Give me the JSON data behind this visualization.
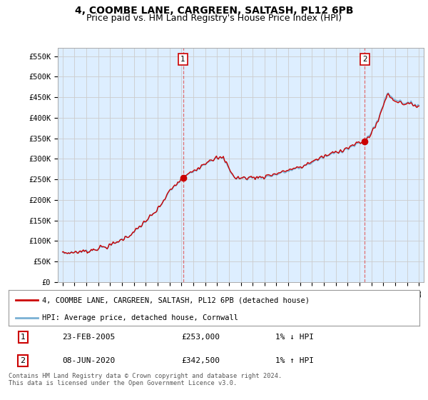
{
  "title": "4, COOMBE LANE, CARGREEN, SALTASH, PL12 6PB",
  "subtitle": "Price paid vs. HM Land Registry's House Price Index (HPI)",
  "title_fontsize": 10,
  "subtitle_fontsize": 9,
  "ylim": [
    0,
    570000
  ],
  "yticks": [
    0,
    50000,
    100000,
    150000,
    200000,
    250000,
    300000,
    350000,
    400000,
    450000,
    500000,
    550000
  ],
  "ytick_labels": [
    "£0",
    "£50K",
    "£100K",
    "£150K",
    "£200K",
    "£250K",
    "£300K",
    "£350K",
    "£400K",
    "£450K",
    "£500K",
    "£550K"
  ],
  "sale1_year": 2005.14,
  "sale1_price": 253000,
  "sale1_label": "1",
  "sale1_date": "23-FEB-2005",
  "sale1_amount": "£253,000",
  "sale1_hpi": "1% ↓ HPI",
  "sale2_year": 2020.44,
  "sale2_price": 342500,
  "sale2_label": "2",
  "sale2_date": "08-JUN-2020",
  "sale2_amount": "£342,500",
  "sale2_hpi": "1% ↑ HPI",
  "hpi_color": "#7ab0d4",
  "sale_color": "#cc0000",
  "vline_color": "#e06060",
  "plot_bg_color": "#ddeeff",
  "legend_label1": "4, COOMBE LANE, CARGREEN, SALTASH, PL12 6PB (detached house)",
  "legend_label2": "HPI: Average price, detached house, Cornwall",
  "footer": "Contains HM Land Registry data © Crown copyright and database right 2024.\nThis data is licensed under the Open Government Licence v3.0.",
  "background_color": "#ffffff",
  "grid_color": "#cccccc"
}
